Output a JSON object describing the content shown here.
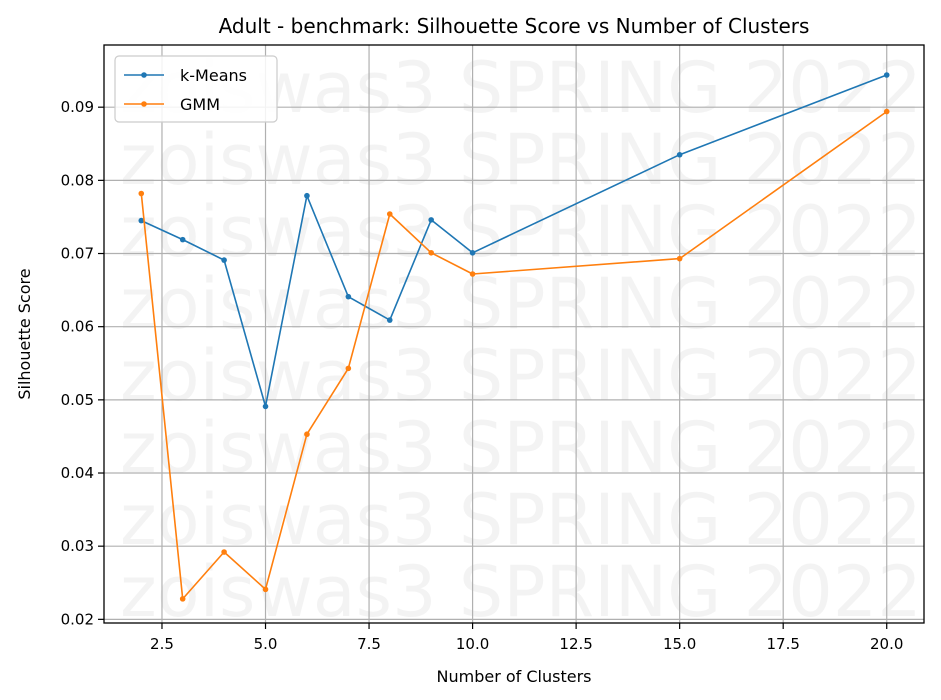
{
  "chart_data": {
    "type": "line",
    "title": "Adult - benchmark: Silhouette Score vs Number of Clusters",
    "xlabel": "Number of Clusters",
    "ylabel": "Silhouette Score",
    "xlim": [
      1.1,
      20.9
    ],
    "ylim": [
      0.0195,
      0.0985
    ],
    "xticks": [
      2.5,
      5.0,
      7.5,
      10.0,
      12.5,
      15.0,
      17.5,
      20.0
    ],
    "xtick_labels": [
      "2.5",
      "5.0",
      "7.5",
      "10.0",
      "12.5",
      "15.0",
      "17.5",
      "20.0"
    ],
    "yticks": [
      0.02,
      0.03,
      0.04,
      0.05,
      0.06,
      0.07,
      0.08,
      0.09
    ],
    "ytick_labels": [
      "0.02",
      "0.03",
      "0.04",
      "0.05",
      "0.06",
      "0.07",
      "0.08",
      "0.09"
    ],
    "grid": true,
    "legend": "top-left",
    "watermark": "zoiswas3 SPRING 2022",
    "x": [
      2,
      3,
      4,
      5,
      6,
      7,
      8,
      9,
      10,
      15,
      20
    ],
    "series": [
      {
        "name": "k-Means",
        "color": "#1f77b4",
        "values": [
          0.0745,
          0.0719,
          0.0691,
          0.0491,
          0.0779,
          0.0641,
          0.0609,
          0.0746,
          0.0701,
          0.0835,
          0.0944
        ]
      },
      {
        "name": "GMM",
        "color": "#ff7f0e",
        "values": [
          0.0782,
          0.0228,
          0.0292,
          0.0241,
          0.0453,
          0.0543,
          0.0754,
          0.0701,
          0.0672,
          0.0693,
          0.0894
        ]
      }
    ]
  }
}
